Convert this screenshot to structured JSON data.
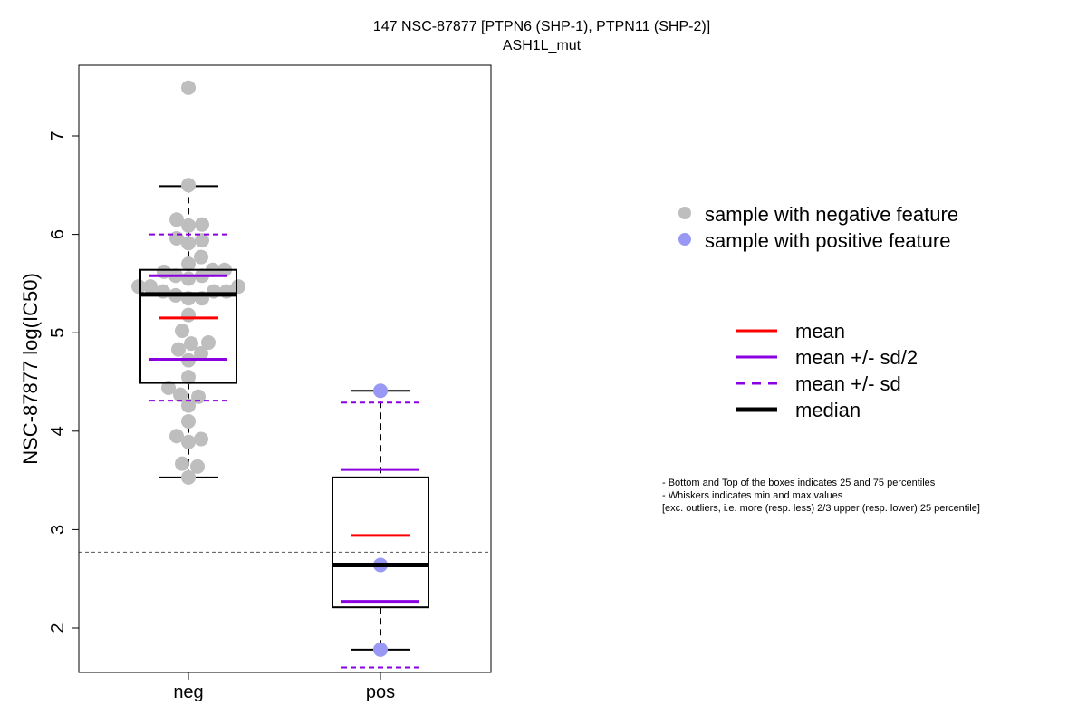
{
  "chart_data": {
    "type": "boxplot",
    "title": "147 NSC-87877 [PTPN6 (SHP-1), PTPN11 (SHP-2)]",
    "subtitle": "ASH1L_mut",
    "xlabel": "",
    "ylabel": "NSC-87877 log(IC50)",
    "categories": [
      "neg",
      "pos"
    ],
    "ylim": [
      1.55,
      7.72
    ],
    "yticks": [
      2,
      3,
      4,
      5,
      6,
      7
    ],
    "reference_line": 2.77,
    "groups": [
      {
        "name": "neg",
        "color": "#bebebe",
        "q1": 4.49,
        "median": 5.39,
        "q3": 5.64,
        "whisker_low": 3.53,
        "whisker_high": 6.49,
        "mean": 5.15,
        "mean_minus_half_sd": 4.73,
        "mean_plus_half_sd": 5.58,
        "mean_minus_sd": 4.31,
        "mean_plus_sd": 6.0,
        "points": [
          {
            "v": 7.49,
            "o": 0.0
          },
          {
            "v": 6.5,
            "o": 0.0
          },
          {
            "v": 6.15,
            "o": -0.13
          },
          {
            "v": 6.09,
            "o": 0.0
          },
          {
            "v": 6.1,
            "o": 0.15
          },
          {
            "v": 5.96,
            "o": -0.13
          },
          {
            "v": 5.91,
            "o": 0.0
          },
          {
            "v": 5.94,
            "o": 0.15
          },
          {
            "v": 5.77,
            "o": 0.14
          },
          {
            "v": 5.7,
            "o": 0.0
          },
          {
            "v": 5.62,
            "o": -0.27
          },
          {
            "v": 5.58,
            "o": -0.14
          },
          {
            "v": 5.55,
            "o": 0.0
          },
          {
            "v": 5.58,
            "o": 0.15
          },
          {
            "v": 5.64,
            "o": 0.27
          },
          {
            "v": 5.64,
            "o": 0.4
          },
          {
            "v": 5.47,
            "o": -0.55
          },
          {
            "v": 5.47,
            "o": -0.42
          },
          {
            "v": 5.42,
            "o": -0.28
          },
          {
            "v": 5.38,
            "o": -0.14
          },
          {
            "v": 5.35,
            "o": 0.0
          },
          {
            "v": 5.35,
            "o": 0.15
          },
          {
            "v": 5.42,
            "o": 0.28
          },
          {
            "v": 5.42,
            "o": 0.42
          },
          {
            "v": 5.47,
            "o": 0.55
          },
          {
            "v": 5.18,
            "o": 0.0
          },
          {
            "v": 5.02,
            "o": -0.07
          },
          {
            "v": 4.83,
            "o": -0.11
          },
          {
            "v": 4.89,
            "o": 0.03
          },
          {
            "v": 4.9,
            "o": 0.22
          },
          {
            "v": 4.79,
            "o": 0.14
          },
          {
            "v": 4.72,
            "o": 0.0
          },
          {
            "v": 4.55,
            "o": 0.0
          },
          {
            "v": 4.44,
            "o": -0.22
          },
          {
            "v": 4.37,
            "o": -0.09
          },
          {
            "v": 4.35,
            "o": 0.11
          },
          {
            "v": 4.26,
            "o": 0.0
          },
          {
            "v": 4.1,
            "o": 0.0
          },
          {
            "v": 3.95,
            "o": -0.13
          },
          {
            "v": 3.89,
            "o": 0.0
          },
          {
            "v": 3.92,
            "o": 0.14
          },
          {
            "v": 3.67,
            "o": -0.07
          },
          {
            "v": 3.64,
            "o": 0.1
          },
          {
            "v": 3.53,
            "o": 0.0
          }
        ]
      },
      {
        "name": "pos",
        "color": "#9999f5",
        "q1": 2.21,
        "median": 2.64,
        "q3": 3.53,
        "whisker_low": 1.78,
        "whisker_high": 4.41,
        "mean": 2.94,
        "mean_minus_half_sd": 2.27,
        "mean_plus_half_sd": 3.61,
        "mean_minus_sd": 1.6,
        "mean_plus_sd": 4.29,
        "points": [
          {
            "v": 4.41,
            "o": 0.0
          },
          {
            "v": 2.64,
            "o": 0.0
          },
          {
            "v": 1.78,
            "o": 0.0
          }
        ]
      }
    ],
    "colors": {
      "mean": "#ff0000",
      "sd": "#8a00e0",
      "median": "#000000",
      "negative_point": "#bebebe",
      "positive_point": "#9999f5"
    },
    "legend_points": [
      {
        "label": "sample with negative feature",
        "color": "#bebebe"
      },
      {
        "label": "sample with positive feature",
        "color": "#9999f5"
      }
    ],
    "legend_lines": [
      {
        "label": "mean",
        "color": "#ff0000",
        "style": "solid"
      },
      {
        "label": "mean +/- sd/2",
        "color": "#8a00e0",
        "style": "solid"
      },
      {
        "label": "mean +/- sd",
        "color": "#8a00e0",
        "style": "dashed"
      },
      {
        "label": "median",
        "color": "#000000",
        "style": "thick"
      }
    ],
    "notes": [
      "- Bottom and Top of the boxes indicates 25 and 75 percentiles",
      "- Whiskers indicates min and max values",
      "[exc. outliers, i.e. more (resp. less) 2/3 upper (resp. lower) 25 percentile]"
    ]
  }
}
